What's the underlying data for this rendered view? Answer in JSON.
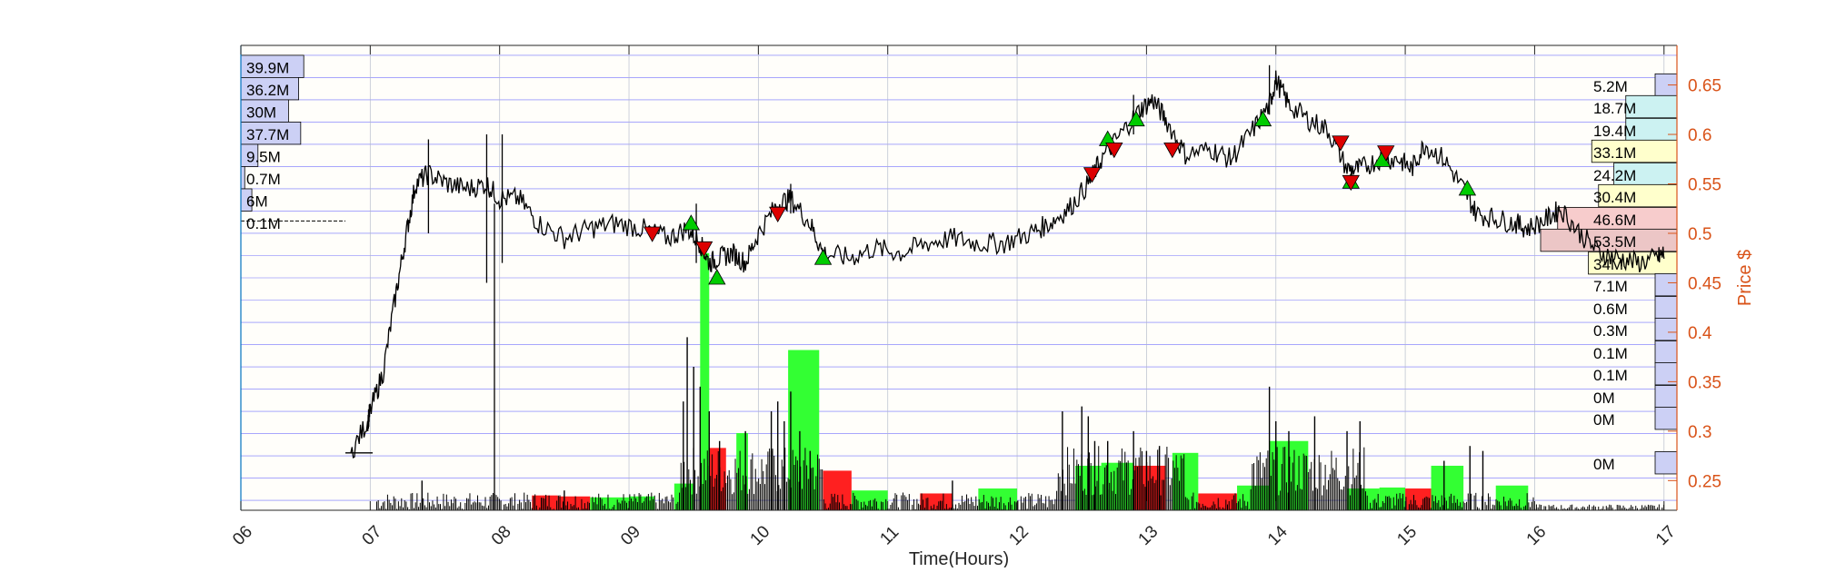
{
  "chart_data": {
    "type": "line",
    "xlabel": "Time(Hours)",
    "ylabel": "Price $",
    "x_ticks": [
      "06",
      "07",
      "08",
      "09",
      "10",
      "11",
      "12",
      "13",
      "14",
      "15",
      "16",
      "17"
    ],
    "xlim": [
      6,
      17.1
    ],
    "ylim": [
      0.22,
      0.69
    ],
    "y_ticks": [
      0.25,
      0.3,
      0.35,
      0.4,
      0.45,
      0.5,
      0.55,
      0.6,
      0.65
    ],
    "y_tick_labels": [
      "0.25",
      "0.3",
      "0.35",
      "0.4",
      "0.45",
      "0.5",
      "0.55",
      "0.6",
      "0.65"
    ],
    "grid": true,
    "price_series": [
      [
        6.85,
        0.278
      ],
      [
        6.98,
        0.31
      ],
      [
        7.0,
        0.32
      ],
      [
        7.1,
        0.36
      ],
      [
        7.2,
        0.44
      ],
      [
        7.28,
        0.5
      ],
      [
        7.35,
        0.55
      ],
      [
        7.45,
        0.56
      ],
      [
        7.6,
        0.55
      ],
      [
        7.75,
        0.545
      ],
      [
        7.9,
        0.55
      ],
      [
        8.0,
        0.535
      ],
      [
        8.15,
        0.535
      ],
      [
        8.3,
        0.51
      ],
      [
        8.5,
        0.495
      ],
      [
        8.7,
        0.505
      ],
      [
        8.9,
        0.51
      ],
      [
        9.1,
        0.505
      ],
      [
        9.3,
        0.495
      ],
      [
        9.45,
        0.505
      ],
      [
        9.55,
        0.49
      ],
      [
        9.62,
        0.47
      ],
      [
        9.7,
        0.475
      ],
      [
        9.8,
        0.48
      ],
      [
        9.9,
        0.47
      ],
      [
        10.0,
        0.5
      ],
      [
        10.15,
        0.53
      ],
      [
        10.25,
        0.535
      ],
      [
        10.4,
        0.51
      ],
      [
        10.5,
        0.48
      ],
      [
        10.7,
        0.475
      ],
      [
        10.9,
        0.485
      ],
      [
        11.1,
        0.48
      ],
      [
        11.3,
        0.49
      ],
      [
        11.5,
        0.495
      ],
      [
        11.7,
        0.49
      ],
      [
        11.9,
        0.49
      ],
      [
        12.1,
        0.5
      ],
      [
        12.25,
        0.51
      ],
      [
        12.4,
        0.525
      ],
      [
        12.55,
        0.55
      ],
      [
        12.65,
        0.575
      ],
      [
        12.8,
        0.6
      ],
      [
        12.95,
        0.625
      ],
      [
        13.05,
        0.635
      ],
      [
        13.15,
        0.615
      ],
      [
        13.3,
        0.58
      ],
      [
        13.5,
        0.585
      ],
      [
        13.65,
        0.575
      ],
      [
        13.8,
        0.6
      ],
      [
        13.95,
        0.63
      ],
      [
        14.0,
        0.655
      ],
      [
        14.1,
        0.63
      ],
      [
        14.25,
        0.615
      ],
      [
        14.4,
        0.605
      ],
      [
        14.55,
        0.565
      ],
      [
        14.65,
        0.565
      ],
      [
        14.8,
        0.575
      ],
      [
        14.95,
        0.575
      ],
      [
        15.05,
        0.565
      ],
      [
        15.15,
        0.59
      ],
      [
        15.3,
        0.575
      ],
      [
        15.45,
        0.545
      ],
      [
        15.55,
        0.52
      ],
      [
        15.7,
        0.515
      ],
      [
        15.85,
        0.51
      ],
      [
        15.95,
        0.505
      ],
      [
        16.1,
        0.515
      ],
      [
        16.2,
        0.525
      ],
      [
        16.35,
        0.5
      ],
      [
        16.5,
        0.48
      ],
      [
        16.65,
        0.475
      ],
      [
        16.8,
        0.47
      ],
      [
        16.95,
        0.475
      ],
      [
        17.0,
        0.48
      ]
    ],
    "spikes": [
      {
        "x": 7.45,
        "low": 0.5,
        "high": 0.595
      },
      {
        "x": 7.9,
        "low": 0.45,
        "high": 0.6
      },
      {
        "x": 8.02,
        "low": 0.47,
        "high": 0.6
      },
      {
        "x": 7.96,
        "low": 0.22,
        "high": 0.53
      },
      {
        "x": 9.52,
        "low": 0.47,
        "high": 0.53
      },
      {
        "x": 10.25,
        "low": 0.52,
        "high": 0.55
      },
      {
        "x": 12.9,
        "low": 0.6,
        "high": 0.64
      },
      {
        "x": 13.95,
        "low": 0.62,
        "high": 0.67
      }
    ],
    "buy_markers": [
      [
        9.48,
        0.51
      ],
      [
        9.68,
        0.455
      ],
      [
        10.5,
        0.475
      ],
      [
        12.7,
        0.595
      ],
      [
        12.92,
        0.615
      ],
      [
        13.9,
        0.615
      ],
      [
        14.58,
        0.552
      ],
      [
        14.82,
        0.574
      ],
      [
        15.48,
        0.545
      ]
    ],
    "sell_markers": [
      [
        9.18,
        0.5
      ],
      [
        9.58,
        0.485
      ],
      [
        10.15,
        0.52
      ],
      [
        12.58,
        0.56
      ],
      [
        12.75,
        0.585
      ],
      [
        13.2,
        0.585
      ],
      [
        14.5,
        0.592
      ],
      [
        14.58,
        0.552
      ],
      [
        14.85,
        0.582
      ]
    ],
    "volume_bars": [
      {
        "x0": 8.25,
        "x1": 8.45,
        "v": 0.235,
        "color": "#ff2020"
      },
      {
        "x0": 8.45,
        "x1": 8.7,
        "v": 0.234,
        "color": "#ff2020"
      },
      {
        "x0": 8.7,
        "x1": 9.0,
        "v": 0.233,
        "color": "#33ff33"
      },
      {
        "x0": 9.0,
        "x1": 9.2,
        "v": 0.234,
        "color": "#33ff33"
      },
      {
        "x0": 9.35,
        "x1": 9.5,
        "v": 0.247,
        "color": "#33ff33"
      },
      {
        "x0": 9.55,
        "x1": 9.62,
        "v": 0.48,
        "color": "#33ff33"
      },
      {
        "x0": 9.62,
        "x1": 9.75,
        "v": 0.283,
        "color": "#ff2020"
      },
      {
        "x0": 9.83,
        "x1": 9.92,
        "v": 0.298,
        "color": "#33ff33"
      },
      {
        "x0": 10.23,
        "x1": 10.47,
        "v": 0.382,
        "color": "#33ff33"
      },
      {
        "x0": 10.5,
        "x1": 10.72,
        "v": 0.26,
        "color": "#ff2020"
      },
      {
        "x0": 10.72,
        "x1": 11.0,
        "v": 0.24,
        "color": "#33ff33"
      },
      {
        "x0": 11.25,
        "x1": 11.5,
        "v": 0.237,
        "color": "#ff2020"
      },
      {
        "x0": 11.7,
        "x1": 12.0,
        "v": 0.242,
        "color": "#33ff33"
      },
      {
        "x0": 12.45,
        "x1": 12.65,
        "v": 0.265,
        "color": "#33ff33"
      },
      {
        "x0": 12.65,
        "x1": 12.9,
        "v": 0.268,
        "color": "#33ff33"
      },
      {
        "x0": 12.9,
        "x1": 13.15,
        "v": 0.265,
        "color": "#ff2020"
      },
      {
        "x0": 13.2,
        "x1": 13.4,
        "v": 0.278,
        "color": "#33ff33"
      },
      {
        "x0": 13.4,
        "x1": 13.7,
        "v": 0.237,
        "color": "#ff2020"
      },
      {
        "x0": 13.7,
        "x1": 13.95,
        "v": 0.245,
        "color": "#33ff33"
      },
      {
        "x0": 13.95,
        "x1": 14.25,
        "v": 0.29,
        "color": "#33ff33"
      },
      {
        "x0": 14.55,
        "x1": 14.8,
        "v": 0.242,
        "color": "#33ff33"
      },
      {
        "x0": 14.8,
        "x1": 15.0,
        "v": 0.243,
        "color": "#33ff33"
      },
      {
        "x0": 15.0,
        "x1": 15.2,
        "v": 0.242,
        "color": "#ff2020"
      },
      {
        "x0": 15.2,
        "x1": 15.45,
        "v": 0.265,
        "color": "#33ff33"
      },
      {
        "x0": 15.7,
        "x1": 15.95,
        "v": 0.245,
        "color": "#33ff33"
      }
    ],
    "volume_spikes": [
      [
        9.45,
        0.395
      ],
      [
        9.5,
        0.365
      ],
      [
        9.55,
        0.345
      ],
      [
        9.42,
        0.33
      ],
      [
        9.62,
        0.32
      ],
      [
        9.7,
        0.29
      ],
      [
        10.1,
        0.32
      ],
      [
        10.15,
        0.33
      ],
      [
        10.2,
        0.31
      ],
      [
        10.25,
        0.34
      ],
      [
        10.1,
        0.28
      ],
      [
        10.32,
        0.3
      ],
      [
        12.35,
        0.32
      ],
      [
        12.5,
        0.325
      ],
      [
        12.55,
        0.315
      ],
      [
        12.7,
        0.29
      ],
      [
        12.9,
        0.3
      ],
      [
        13.0,
        0.28
      ],
      [
        13.95,
        0.345
      ],
      [
        14.0,
        0.31
      ],
      [
        14.1,
        0.3
      ],
      [
        14.3,
        0.315
      ],
      [
        14.55,
        0.3
      ],
      [
        14.65,
        0.31
      ],
      [
        15.5,
        0.285
      ],
      [
        15.6,
        0.28
      ],
      [
        12.6,
        0.29
      ],
      [
        13.1,
        0.285
      ],
      [
        7.4,
        0.25
      ],
      [
        8.5,
        0.24
      ],
      [
        9.9,
        0.3
      ],
      [
        10.4,
        0.28
      ],
      [
        11.5,
        0.25
      ],
      [
        15.3,
        0.27
      ]
    ],
    "left_volume_profile": [
      {
        "label": "39.9M",
        "frac": 0.6
      },
      {
        "label": "36.2M",
        "frac": 0.55
      },
      {
        "label": "30M",
        "frac": 0.45
      },
      {
        "label": "37.7M",
        "frac": 0.57
      },
      {
        "label": "9.5M",
        "frac": 0.15
      },
      {
        "label": "0.7M",
        "frac": 0.02
      },
      {
        "label": "6M",
        "frac": 0.09
      },
      {
        "label": "0.1M",
        "frac": 0.0
      }
    ],
    "left_profile_top_price": 0.68,
    "left_profile_step": 0.0225,
    "right_volume_profile": [
      {
        "label": "5.2M",
        "price": 0.65,
        "frac": 0.07,
        "color": "#ccd0f5"
      },
      {
        "label": "18.7M",
        "price": 0.628,
        "frac": 0.3,
        "color": "#ccf2f2"
      },
      {
        "label": "19.4M",
        "price": 0.605,
        "frac": 0.3,
        "color": "#ccf2f2"
      },
      {
        "label": "33.1M",
        "price": 0.583,
        "frac": 0.5,
        "color": "#ffffcc"
      },
      {
        "label": "24.2M",
        "price": 0.56,
        "frac": 0.37,
        "color": "#ccf2f2"
      },
      {
        "label": "30.4M",
        "price": 0.538,
        "frac": 0.46,
        "color": "#ffffcc"
      },
      {
        "label": "46.6M",
        "price": 0.515,
        "frac": 0.7,
        "color": "#f7cccc"
      },
      {
        "label": "53.5M",
        "price": 0.493,
        "frac": 0.8,
        "color": "#ecc6c6"
      },
      {
        "label": "34M",
        "price": 0.47,
        "frac": 0.52,
        "color": "#ffffcc"
      },
      {
        "label": "7.1M",
        "price": 0.448,
        "frac": 0.11,
        "color": "#ccd0f5"
      },
      {
        "label": "0.6M",
        "price": 0.425,
        "frac": 0.02,
        "color": "#ccd0f5"
      },
      {
        "label": "0.3M",
        "price": 0.403,
        "frac": 0.02,
        "color": "#ccd0f5"
      },
      {
        "label": "0.1M",
        "price": 0.38,
        "frac": 0.02,
        "color": "#ccd0f5"
      },
      {
        "label": "0.1M",
        "price": 0.358,
        "frac": 0.02,
        "color": "#ccd0f5"
      },
      {
        "label": "0M",
        "price": 0.335,
        "frac": 0.02,
        "color": "#ccd0f5"
      },
      {
        "label": "0M",
        "price": 0.313,
        "frac": 0.02,
        "color": "#ccd0f5"
      },
      {
        "label": "0M",
        "price": 0.268,
        "frac": 0.02,
        "color": "#ccd0f5"
      }
    ],
    "colors": {
      "price_line": "#000000",
      "grid_horizontal": "#0000ff",
      "grid_vertical": "#b0b8c8",
      "right_axis": "#d95319",
      "buy": "#00cc00",
      "sell": "#dd0000",
      "profile_default": "#ccd0f5"
    }
  }
}
